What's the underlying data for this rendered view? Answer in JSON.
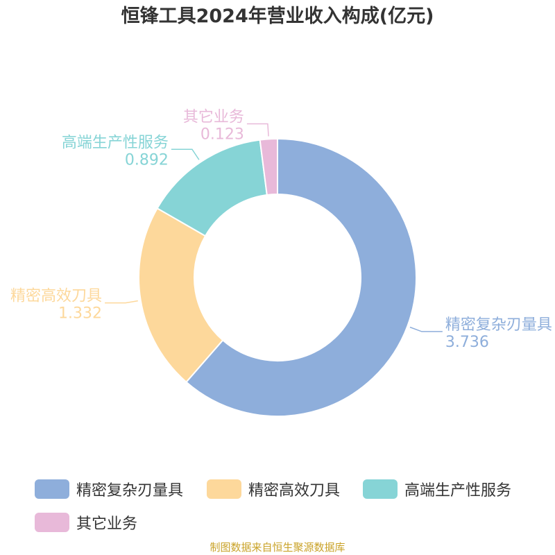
{
  "title": "恒锋工具2024年营业收入构成(亿元)",
  "source": "制图数据来自恒生聚源数据库",
  "chart_data": {
    "type": "pie",
    "variant": "donut",
    "title": "恒锋工具2024年营业收入构成(亿元)",
    "legend_position": "bottom",
    "slices": [
      {
        "name": "精密复杂刃量具",
        "value": 3.736,
        "value_label": "3.736",
        "color": "#8eaedb"
      },
      {
        "name": "精密高效刀具",
        "value": 1.332,
        "value_label": "1.332",
        "color": "#fdd89b"
      },
      {
        "name": "高端生产性服务",
        "value": 0.892,
        "value_label": "0.892",
        "color": "#86d4d6"
      },
      {
        "name": "其它业务",
        "value": 0.123,
        "value_label": "0.123",
        "color": "#e8b9d9"
      }
    ]
  }
}
